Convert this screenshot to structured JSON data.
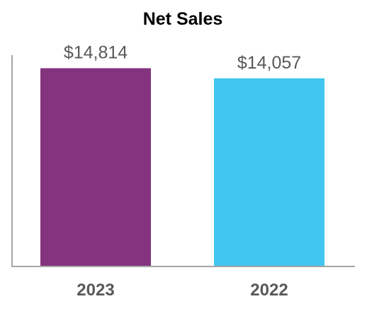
{
  "chart_data": {
    "type": "bar",
    "title": "Net Sales",
    "xlabel": "",
    "ylabel": "",
    "categories": [
      "2023",
      "2022"
    ],
    "values": [
      14814,
      14057
    ],
    "data_labels": [
      "$14,814",
      "$14,057"
    ],
    "colors": [
      "#84337e",
      "#41c6f0"
    ],
    "ylim": [
      0,
      15900
    ],
    "grid": false,
    "legend": "none"
  }
}
